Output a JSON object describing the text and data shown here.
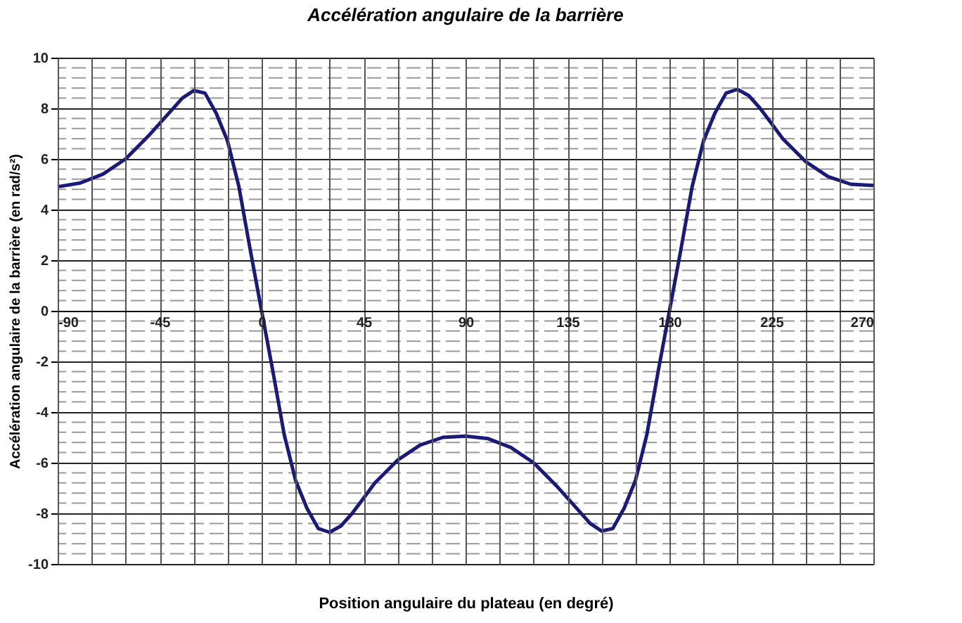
{
  "chart_data": {
    "type": "line",
    "title": "Accélération angulaire de la barrière",
    "xlabel": "Position angulaire du plateau (en degré)",
    "ylabel": "Accélération angulaire de la barrière (en rad/s²)",
    "x": [
      -90,
      -80,
      -70,
      -60,
      -50,
      -45,
      -40,
      -35,
      -30,
      -25,
      -20,
      -15,
      -10,
      -5,
      0,
      5,
      10,
      15,
      20,
      25,
      30,
      35,
      40,
      45,
      50,
      60,
      70,
      80,
      90,
      100,
      110,
      120,
      130,
      135,
      140,
      145,
      150,
      155,
      160,
      165,
      170,
      175,
      180,
      185,
      190,
      195,
      200,
      205,
      210,
      215,
      220,
      225,
      230,
      240,
      250,
      260,
      270
    ],
    "series": [
      {
        "color": "#1a1a7a",
        "values": [
          4.9,
          5.05,
          5.4,
          6.0,
          6.9,
          7.4,
          7.9,
          8.4,
          8.7,
          8.6,
          7.8,
          6.7,
          4.9,
          2.4,
          0,
          -2.4,
          -4.9,
          -6.7,
          -7.8,
          -8.6,
          -8.75,
          -8.5,
          -8.0,
          -7.4,
          -6.8,
          -5.9,
          -5.3,
          -5.0,
          -4.95,
          -5.05,
          -5.4,
          -6.0,
          -6.9,
          -7.4,
          -7.9,
          -8.4,
          -8.7,
          -8.6,
          -7.8,
          -6.7,
          -4.9,
          -2.4,
          0,
          2.4,
          4.9,
          6.7,
          7.8,
          8.6,
          8.75,
          8.5,
          8.0,
          7.4,
          6.8,
          5.9,
          5.3,
          5.0,
          4.95
        ]
      }
    ],
    "xlim": [
      -90,
      270
    ],
    "ylim": [
      -10,
      10
    ],
    "xticks": [
      -90,
      {
        "value": -75,
        "label": null
      },
      {
        "value": -60,
        "label": null
      },
      -45,
      {
        "value": -30,
        "label": null
      },
      {
        "value": -15,
        "label": null
      },
      0,
      {
        "value": 15,
        "label": null
      },
      {
        "value": 30,
        "label": null
      },
      45,
      {
        "value": 60,
        "label": null
      },
      {
        "value": 75,
        "label": null
      },
      90,
      {
        "value": 105,
        "label": null
      },
      {
        "value": 120,
        "label": null
      },
      135,
      {
        "value": 150,
        "label": null
      },
      {
        "value": 165,
        "label": null
      },
      180,
      {
        "value": 195,
        "label": null
      },
      {
        "value": 210,
        "label": null
      },
      225,
      {
        "value": 240,
        "label": null
      },
      {
        "value": 255,
        "label": null
      },
      270
    ],
    "yticks": [
      -10,
      -8,
      -6,
      -4,
      -2,
      0,
      2,
      4,
      6,
      8,
      10
    ],
    "grid": true,
    "marker": "none",
    "line_style": "solid"
  }
}
